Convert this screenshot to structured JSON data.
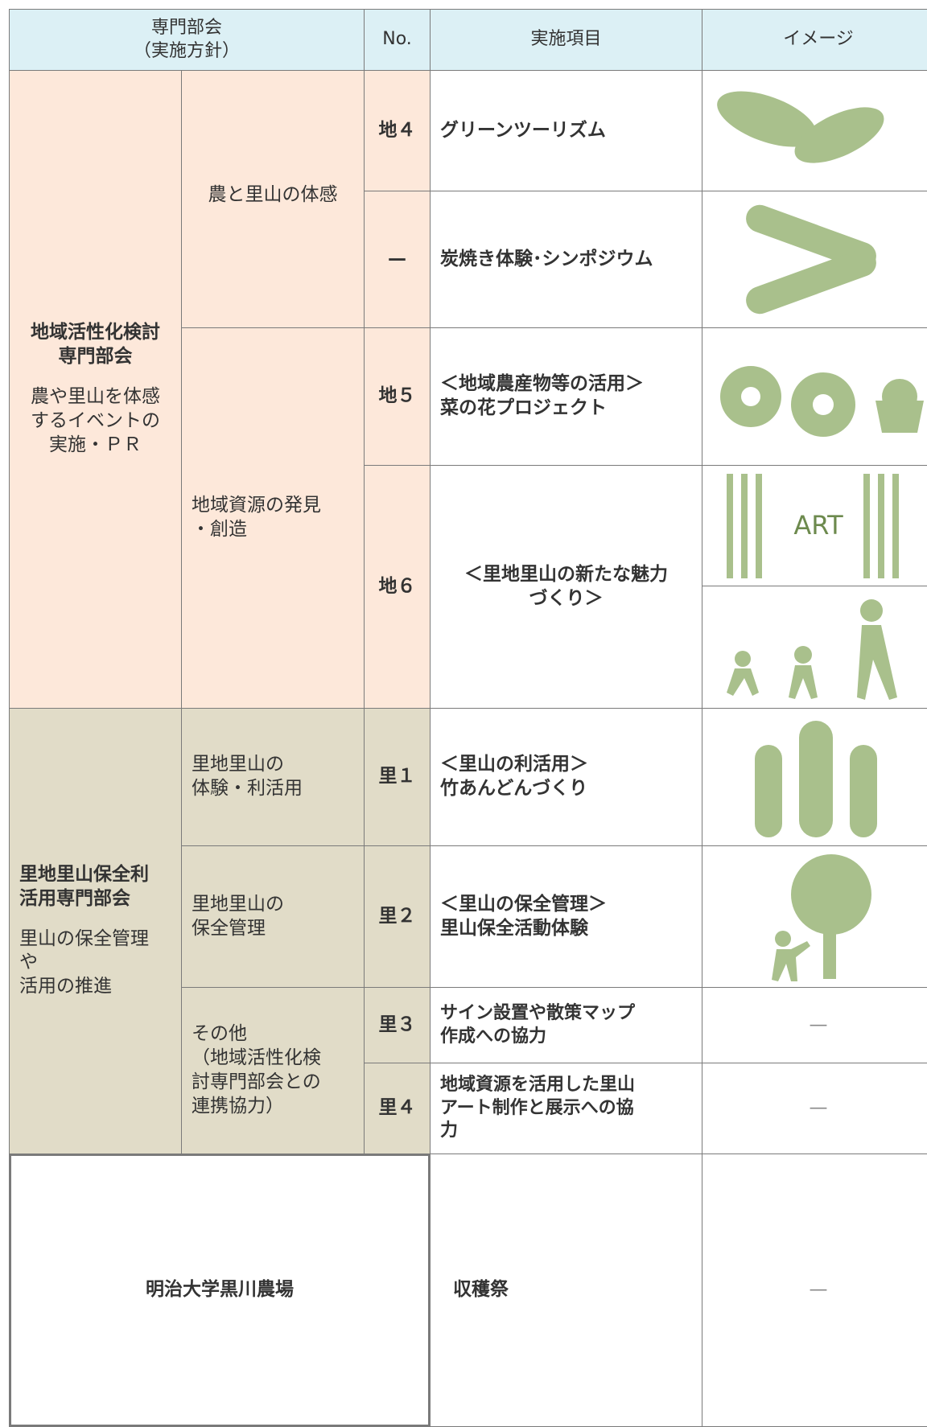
{
  "header": {
    "committee": "専門部会\n（実施方針）",
    "no": "No.",
    "item": "実施項目",
    "image": "イメージ"
  },
  "committees": [
    {
      "name": "地域活性化検討\n専門部会",
      "policy": "農や里山を体感\nするイベントの\n実施・ＰＲ",
      "themes": [
        {
          "name": "農と里山の体感",
          "items": [
            {
              "no": "地４",
              "title": "グリーンツーリズム"
            },
            {
              "no": "—",
              "title": "炭焼き体験･シンポジウム"
            }
          ]
        },
        {
          "name": "地域資源の発見\n・創造",
          "items": [
            {
              "no": "地５",
              "title": "＜地域農産物等の活用＞\n菜の花プロジェクト"
            },
            {
              "no": "地６",
              "title": "＜里地里山の新たな魅力\nづくり＞",
              "image_text": "ART"
            }
          ]
        }
      ]
    },
    {
      "name": "里地里山保全利\n活用専門部会",
      "policy": "里山の保全管理\nや\n活用の推進",
      "themes": [
        {
          "name": "里地里山の\n体験・利活用",
          "items": [
            {
              "no": "里１",
              "title": "＜里山の利活用＞\n竹あんどんづくり"
            }
          ]
        },
        {
          "name": "里地里山の\n保全管理",
          "items": [
            {
              "no": "里２",
              "title": "＜里山の保全管理＞\n里山保全活動体験"
            }
          ]
        },
        {
          "name": "その他\n（地域活性化検\n討専門部会との\n連携協力）",
          "items": [
            {
              "no": "里３",
              "title": "サイン設置や散策マップ\n作成への協力",
              "image": "—"
            },
            {
              "no": "里４",
              "title": "地域資源を活用した里山\nアート制作と展示への協\n力",
              "image": "—"
            }
          ]
        }
      ]
    }
  ],
  "footer": {
    "name": "明治大学黒川農場",
    "title": "収穫祭",
    "image": "—"
  }
}
